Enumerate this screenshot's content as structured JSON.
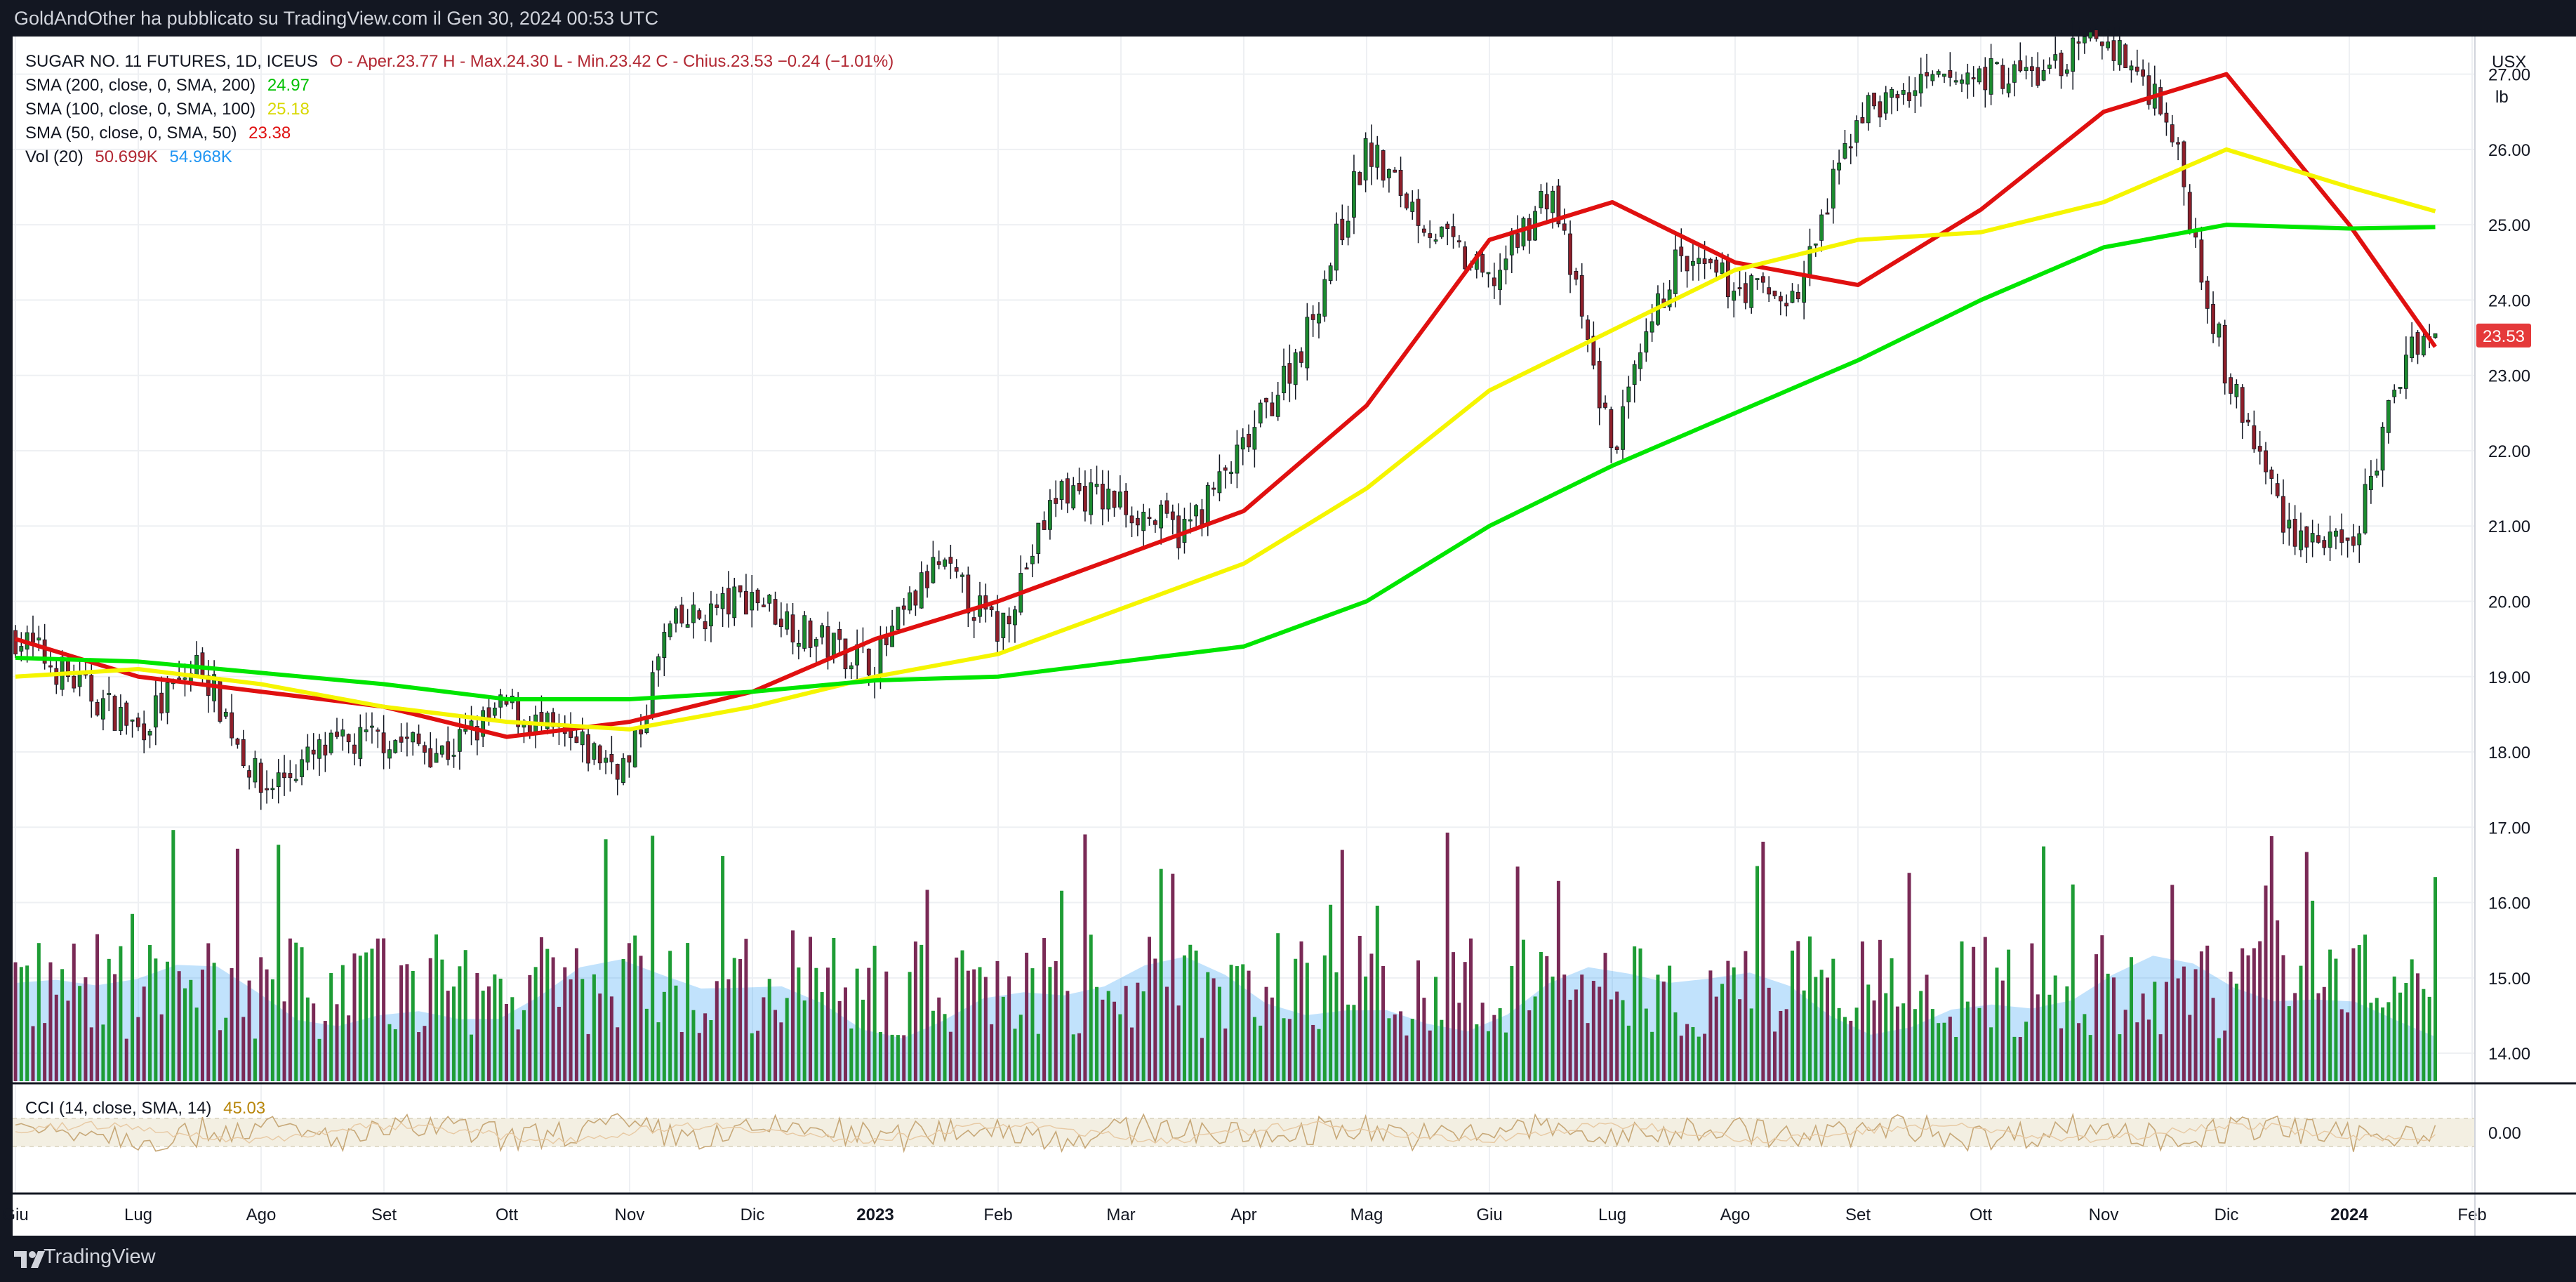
{
  "header": {
    "text": "GoldAndOther ha pubblicato su TradingView.com il Gen 30, 2024 00:53 UTC"
  },
  "footer": {
    "brand": "TradingView"
  },
  "legend": {
    "symbol": "SUGAR NO. 11 FUTURES, 1D, ICEUS",
    "ohlc": "O - Aper.23.77  H - Max.24.30  L - Min.23.42  C - Chius.23.53  −0.24 (−1.01%)",
    "sma200": {
      "label": "SMA (200, close, 0, SMA, 200)",
      "value": "24.97",
      "color": "#00e600"
    },
    "sma100": {
      "label": "SMA (100, close, 0, SMA, 100)",
      "value": "25.18",
      "color": "#f5f500"
    },
    "sma50": {
      "label": "SMA (50, close, 0, SMA, 50)",
      "value": "23.38",
      "color": "#e01010"
    },
    "vol": {
      "label": "Vol (20)",
      "value1": "50.699K",
      "value2": "54.968K"
    },
    "cci": {
      "label": "CCI (14, close, SMA, 14)",
      "value": "45.03"
    }
  },
  "chart_data": {
    "type": "line",
    "title": "SUGAR NO. 11 FUTURES, 1D, ICEUS",
    "unit": "USX / lb",
    "x_labels": [
      "Giu",
      "Lug",
      "Ago",
      "Set",
      "Ott",
      "Nov",
      "Dic",
      "2023",
      "Feb",
      "Mar",
      "Apr",
      "Mag",
      "Giu",
      "Lug",
      "Ago",
      "Set",
      "Ott",
      "Nov",
      "Dic",
      "2024",
      "Feb"
    ],
    "y_ticks": [
      "27.00",
      "26.00",
      "25.00",
      "24.00",
      "23.00",
      "22.00",
      "21.00",
      "20.00",
      "19.00",
      "18.00",
      "17.00",
      "16.00",
      "15.00",
      "14.00"
    ],
    "ylim": [
      13.6,
      27.5
    ],
    "last_price": "23.53",
    "cci_zero_label": "0.00",
    "axis_unit_top": "USX",
    "axis_unit_bottom": "lb",
    "price_path": [
      [
        0,
        19.55
      ],
      [
        0.5,
        18.9
      ],
      [
        1,
        18.3
      ],
      [
        1.5,
        19.2
      ],
      [
        2,
        17.5
      ],
      [
        2.5,
        18.0
      ],
      [
        3,
        18.2
      ],
      [
        3.5,
        18.0
      ],
      [
        4,
        18.6
      ],
      [
        4.5,
        18.1
      ],
      [
        5,
        17.8
      ],
      [
        5.3,
        19.6
      ],
      [
        6,
        20.1
      ],
      [
        6.5,
        19.5
      ],
      [
        7,
        19.2
      ],
      [
        7.5,
        20.5
      ],
      [
        8,
        19.6
      ],
      [
        8.5,
        21.5
      ],
      [
        9,
        21.3
      ],
      [
        9.5,
        20.9
      ],
      [
        10,
        22.0
      ],
      [
        10.5,
        23.5
      ],
      [
        11,
        26.0
      ],
      [
        11.5,
        25.0
      ],
      [
        12,
        24.2
      ],
      [
        12.5,
        25.5
      ],
      [
        13,
        22.0
      ],
      [
        13.5,
        24.5
      ],
      [
        14,
        24.2
      ],
      [
        14.5,
        24.0
      ],
      [
        15,
        26.5
      ],
      [
        15.5,
        26.8
      ],
      [
        16,
        27.0
      ],
      [
        16.5,
        27.0
      ],
      [
        17,
        27.5
      ],
      [
        17.5,
        26.6
      ],
      [
        18,
        23.0
      ],
      [
        18.5,
        21.0
      ],
      [
        19,
        20.6
      ],
      [
        19.5,
        23.5
      ],
      [
        19.7,
        23.53
      ]
    ],
    "series": [
      {
        "name": "SMA (50, close, 0, SMA, 50)",
        "color": "#e01010",
        "values": [
          [
            0,
            19.5
          ],
          [
            1,
            19.0
          ],
          [
            2,
            18.8
          ],
          [
            3,
            18.6
          ],
          [
            4,
            18.2
          ],
          [
            5,
            18.4
          ],
          [
            6,
            18.8
          ],
          [
            7,
            19.5
          ],
          [
            8,
            20.0
          ],
          [
            9,
            20.6
          ],
          [
            10,
            21.2
          ],
          [
            11,
            22.6
          ],
          [
            12,
            24.8
          ],
          [
            13,
            25.3
          ],
          [
            14,
            24.5
          ],
          [
            15,
            24.2
          ],
          [
            16,
            25.2
          ],
          [
            17,
            26.5
          ],
          [
            18,
            27.0
          ],
          [
            19,
            25.0
          ],
          [
            19.7,
            23.38
          ]
        ]
      },
      {
        "name": "SMA (100, close, 0, SMA, 100)",
        "color": "#f5f500",
        "values": [
          [
            0,
            19.0
          ],
          [
            1,
            19.1
          ],
          [
            2,
            18.9
          ],
          [
            3,
            18.6
          ],
          [
            4,
            18.4
          ],
          [
            5,
            18.3
          ],
          [
            6,
            18.6
          ],
          [
            7,
            19.0
          ],
          [
            8,
            19.3
          ],
          [
            9,
            19.9
          ],
          [
            10,
            20.5
          ],
          [
            11,
            21.5
          ],
          [
            12,
            22.8
          ],
          [
            13,
            23.6
          ],
          [
            14,
            24.4
          ],
          [
            15,
            24.8
          ],
          [
            16,
            24.9
          ],
          [
            17,
            25.3
          ],
          [
            18,
            26.0
          ],
          [
            19,
            25.5
          ],
          [
            19.7,
            25.18
          ]
        ]
      },
      {
        "name": "SMA (200, close, 0, SMA, 200)",
        "color": "#00e600",
        "values": [
          [
            0,
            19.25
          ],
          [
            1,
            19.2
          ],
          [
            2,
            19.05
          ],
          [
            3,
            18.9
          ],
          [
            4,
            18.7
          ],
          [
            5,
            18.7
          ],
          [
            6,
            18.8
          ],
          [
            7,
            18.95
          ],
          [
            8,
            19.0
          ],
          [
            9,
            19.2
          ],
          [
            10,
            19.4
          ],
          [
            11,
            20.0
          ],
          [
            12,
            21.0
          ],
          [
            13,
            21.8
          ],
          [
            14,
            22.5
          ],
          [
            15,
            23.2
          ],
          [
            16,
            24.0
          ],
          [
            17,
            24.7
          ],
          [
            18,
            25.0
          ],
          [
            19,
            24.95
          ],
          [
            19.7,
            24.97
          ]
        ]
      }
    ]
  }
}
